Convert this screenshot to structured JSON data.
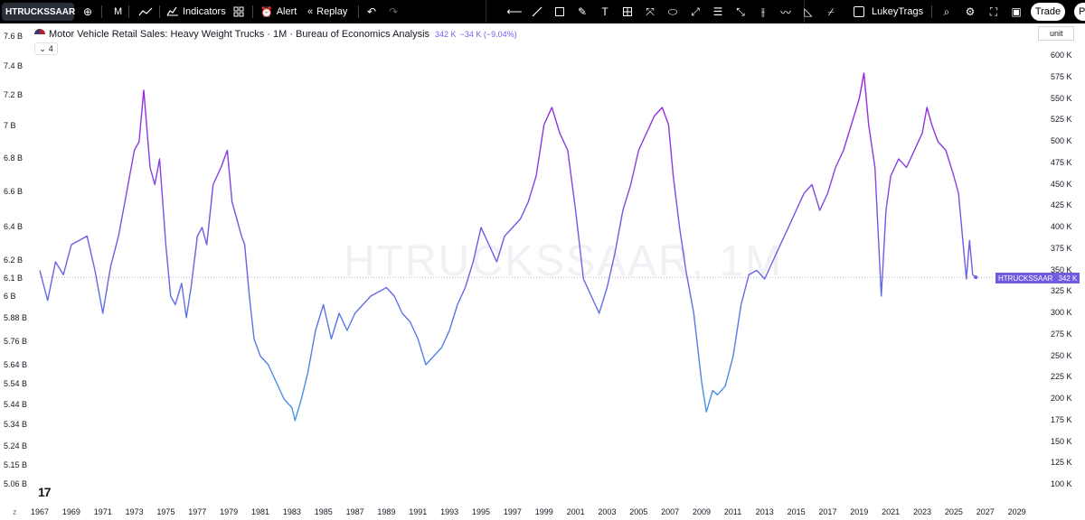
{
  "toolbar": {
    "symbol": "HTRUCKSSAAR",
    "interval": "M",
    "indicators_label": "Indicators",
    "alert_label": "Alert",
    "replay_label": "Replay",
    "layout_name": "LukeyTrags",
    "trade_label": "Trade",
    "publish_label": "Pu",
    "icons": [
      "add-symbol-icon",
      "bar-style-icon",
      "indicators-icon",
      "layouts-icon",
      "alert-icon",
      "replay-icon",
      "undo-icon",
      "redo-icon",
      "crosshair-icon",
      "trend-line-icon",
      "rectangle-icon",
      "brush-icon",
      "text-icon",
      "fib-icon",
      "measure-icon",
      "shapes-icon",
      "pattern-icon",
      "projection-icon",
      "long-short-icon",
      "path-icon",
      "forecast-icon",
      "ellipse-icon",
      "zoom-icon",
      "settings-icon",
      "fullscreen-icon",
      "camera-icon"
    ]
  },
  "legend": {
    "title": "Motor Vehicle Retail Sales: Heavy Weight Trucks · 1M · Bureau of Economics Analysis",
    "value": "342 K",
    "change": "−34 K (−9.04%)",
    "collapsed_count": "4"
  },
  "watermark": "HTRUCKSSAAR, 1M",
  "unit_label": "unit",
  "price_tag": {
    "symbol": "HTRUCKSSAAR",
    "value": "342 K"
  },
  "zoom_label": "z",
  "colors": {
    "line_high": "#a020e0",
    "line_low": "#3d9be9",
    "tag": "#6f5ce0",
    "background": "#ffffff"
  },
  "chart_data": {
    "type": "line",
    "title": "Motor Vehicle Retail Sales: Heavy Weight Trucks",
    "xlabel": "",
    "ylabel": "",
    "x_ticks": [
      "1967",
      "1969",
      "1971",
      "1973",
      "1975",
      "1977",
      "1979",
      "1981",
      "1983",
      "1985",
      "1987",
      "1989",
      "1991",
      "1993",
      "1995",
      "1997",
      "1999",
      "2001",
      "2003",
      "2005",
      "2007",
      "2009",
      "2011",
      "2013",
      "2015",
      "2017",
      "2019",
      "2021",
      "2023",
      "2025",
      "2027",
      "2029"
    ],
    "left_ticks": [
      "7.6 B",
      "7.4 B",
      "7.2 B",
      "7 B",
      "6.8 B",
      "6.6 B",
      "6.4 B",
      "6.2 B",
      "6.1 B",
      "6 B",
      "5.88 B",
      "5.76 B",
      "5.64 B",
      "5.54 B",
      "5.44 B",
      "5.34 B",
      "5.24 B",
      "5.15 B",
      "5.06 B"
    ],
    "right_ticks": [
      "600 K",
      "575 K",
      "550 K",
      "525 K",
      "500 K",
      "475 K",
      "450 K",
      "425 K",
      "400 K",
      "375 K",
      "350 K",
      "325 K",
      "300 K",
      "275 K",
      "250 K",
      "225 K",
      "200 K",
      "175 K",
      "150 K",
      "125 K",
      "100 K"
    ],
    "ylim": [
      100,
      600
    ],
    "xlim": [
      1967,
      2030
    ],
    "grid": false,
    "last_value": 342,
    "series": [
      {
        "points": [
          [
            1967.0,
            350
          ],
          [
            1967.5,
            315
          ],
          [
            1968.0,
            360
          ],
          [
            1968.5,
            345
          ],
          [
            1969.0,
            380
          ],
          [
            1969.5,
            385
          ],
          [
            1970.0,
            390
          ],
          [
            1970.5,
            350
          ],
          [
            1971.0,
            300
          ],
          [
            1971.5,
            355
          ],
          [
            1972.0,
            390
          ],
          [
            1972.5,
            440
          ],
          [
            1973.0,
            490
          ],
          [
            1973.3,
            500
          ],
          [
            1973.6,
            560
          ],
          [
            1974.0,
            470
          ],
          [
            1974.3,
            450
          ],
          [
            1974.6,
            480
          ],
          [
            1975.0,
            380
          ],
          [
            1975.3,
            320
          ],
          [
            1975.6,
            310
          ],
          [
            1976.0,
            335
          ],
          [
            1976.3,
            295
          ],
          [
            1976.6,
            330
          ],
          [
            1977.0,
            390
          ],
          [
            1977.3,
            400
          ],
          [
            1977.6,
            380
          ],
          [
            1978.0,
            450
          ],
          [
            1978.5,
            470
          ],
          [
            1978.9,
            490
          ],
          [
            1979.2,
            430
          ],
          [
            1979.5,
            410
          ],
          [
            1979.8,
            390
          ],
          [
            1980.0,
            380
          ],
          [
            1980.3,
            320
          ],
          [
            1980.6,
            270
          ],
          [
            1981.0,
            250
          ],
          [
            1981.5,
            240
          ],
          [
            1982.0,
            220
          ],
          [
            1982.5,
            200
          ],
          [
            1983.0,
            190
          ],
          [
            1983.2,
            175
          ],
          [
            1983.6,
            200
          ],
          [
            1984.0,
            230
          ],
          [
            1984.5,
            280
          ],
          [
            1985.0,
            310
          ],
          [
            1985.5,
            270
          ],
          [
            1986.0,
            300
          ],
          [
            1986.5,
            280
          ],
          [
            1987.0,
            300
          ],
          [
            1987.5,
            310
          ],
          [
            1988.0,
            320
          ],
          [
            1988.5,
            325
          ],
          [
            1989.0,
            330
          ],
          [
            1989.5,
            320
          ],
          [
            1990.0,
            300
          ],
          [
            1990.5,
            290
          ],
          [
            1991.0,
            270
          ],
          [
            1991.5,
            240
          ],
          [
            1992.0,
            250
          ],
          [
            1992.5,
            260
          ],
          [
            1993.0,
            280
          ],
          [
            1993.5,
            310
          ],
          [
            1994.0,
            330
          ],
          [
            1994.5,
            360
          ],
          [
            1995.0,
            400
          ],
          [
            1995.5,
            380
          ],
          [
            1996.0,
            360
          ],
          [
            1996.5,
            390
          ],
          [
            1997.0,
            400
          ],
          [
            1997.5,
            410
          ],
          [
            1998.0,
            430
          ],
          [
            1998.5,
            460
          ],
          [
            1999.0,
            520
          ],
          [
            1999.5,
            540
          ],
          [
            2000.0,
            510
          ],
          [
            2000.5,
            490
          ],
          [
            2001.0,
            420
          ],
          [
            2001.5,
            340
          ],
          [
            2002.0,
            320
          ],
          [
            2002.5,
            300
          ],
          [
            2003.0,
            330
          ],
          [
            2003.5,
            370
          ],
          [
            2004.0,
            420
          ],
          [
            2004.5,
            450
          ],
          [
            2005.0,
            490
          ],
          [
            2005.5,
            510
          ],
          [
            2006.0,
            530
          ],
          [
            2006.5,
            540
          ],
          [
            2006.9,
            520
          ],
          [
            2007.2,
            460
          ],
          [
            2007.6,
            400
          ],
          [
            2008.0,
            350
          ],
          [
            2008.5,
            300
          ],
          [
            2009.0,
            220
          ],
          [
            2009.3,
            185
          ],
          [
            2009.7,
            210
          ],
          [
            2010.0,
            205
          ],
          [
            2010.5,
            215
          ],
          [
            2011.0,
            250
          ],
          [
            2011.5,
            310
          ],
          [
            2012.0,
            345
          ],
          [
            2012.5,
            350
          ],
          [
            2013.0,
            340
          ],
          [
            2013.5,
            360
          ],
          [
            2014.0,
            380
          ],
          [
            2014.5,
            400
          ],
          [
            2015.0,
            420
          ],
          [
            2015.5,
            440
          ],
          [
            2016.0,
            450
          ],
          [
            2016.5,
            420
          ],
          [
            2017.0,
            440
          ],
          [
            2017.5,
            470
          ],
          [
            2018.0,
            490
          ],
          [
            2018.5,
            520
          ],
          [
            2019.0,
            550
          ],
          [
            2019.3,
            580
          ],
          [
            2019.6,
            520
          ],
          [
            2020.0,
            470
          ],
          [
            2020.4,
            320
          ],
          [
            2020.7,
            420
          ],
          [
            2021.0,
            460
          ],
          [
            2021.5,
            480
          ],
          [
            2022.0,
            470
          ],
          [
            2022.5,
            490
          ],
          [
            2023.0,
            510
          ],
          [
            2023.3,
            540
          ],
          [
            2023.6,
            520
          ],
          [
            2024.0,
            500
          ],
          [
            2024.5,
            490
          ],
          [
            2025.0,
            460
          ],
          [
            2025.3,
            440
          ],
          [
            2025.6,
            380
          ],
          [
            2025.8,
            340
          ],
          [
            2026.0,
            385
          ],
          [
            2026.2,
            345
          ],
          [
            2026.4,
            342
          ]
        ]
      }
    ]
  }
}
